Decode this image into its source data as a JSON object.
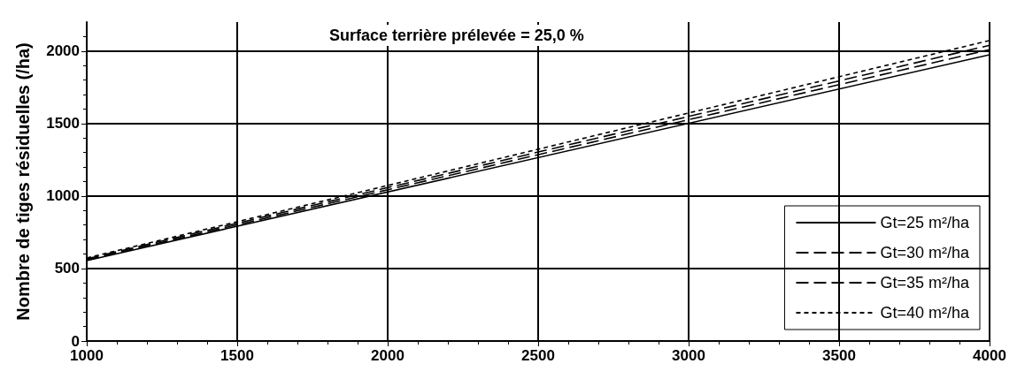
{
  "chart_data": {
    "type": "line",
    "title": "Surface terrière prélevée = 25,0 %",
    "ylabel": "Nombre de tiges résiduelles (/ha)",
    "x": [
      1000,
      4000
    ],
    "series": [
      {
        "name": "Gt=25 m²/ha",
        "color": "#000000",
        "values": [
          555,
          1975
        ],
        "line_style": "solid"
      },
      {
        "name": "Gt=30 m²/ha",
        "color": "#000000",
        "values": [
          560,
          2010
        ],
        "line_style": "dashed"
      },
      {
        "name": "Gt=35 m²/ha",
        "color": "#000000",
        "values": [
          567,
          2040
        ],
        "line_style": "dashed"
      },
      {
        "name": "Gt=40 m²/ha",
        "color": "#000000",
        "values": [
          573,
          2073
        ],
        "line_style": "dotted"
      }
    ],
    "xlim": [
      1000,
      4000
    ],
    "xticks": [
      1000,
      1500,
      2000,
      2500,
      3000,
      3500,
      4000
    ],
    "ylim": [
      0,
      2200
    ],
    "yticks": [
      0,
      500,
      1000,
      1500,
      2000
    ],
    "grid": true,
    "legend": "bottom right",
    "marker": "none"
  }
}
